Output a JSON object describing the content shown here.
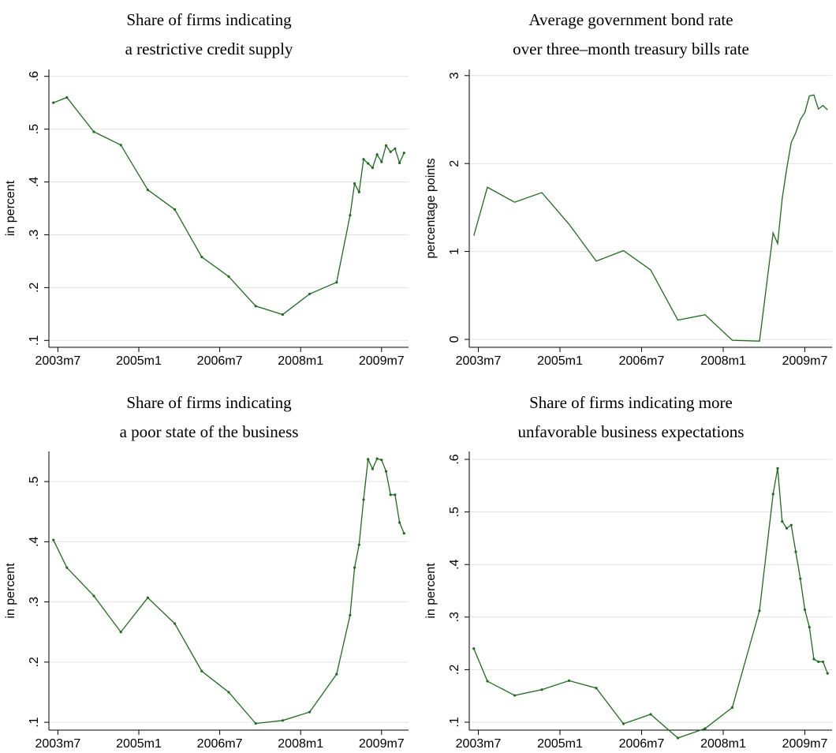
{
  "chart_data": [
    {
      "type": "line",
      "title": [
        "Share of firms indicating",
        "a restrictive credit supply"
      ],
      "ylabel": "in percent",
      "color": "#1e6b1e",
      "markers": true,
      "grid": true,
      "x": [
        "2003m6",
        "2003m9",
        "2004m3",
        "2004m9",
        "2005m3",
        "2005m9",
        "2006m3",
        "2006m9",
        "2007m3",
        "2007m9",
        "2008m3",
        "2008m9",
        "2008m12",
        "2009m1",
        "2009m2",
        "2009m3",
        "2009m4",
        "2009m5",
        "2009m6",
        "2009m7",
        "2009m8",
        "2009m9",
        "2009m10",
        "2009m11",
        "2009m12"
      ],
      "values": [
        0.55,
        0.56,
        0.495,
        0.47,
        0.385,
        0.348,
        0.258,
        0.221,
        0.165,
        0.149,
        0.188,
        0.21,
        0.337,
        0.397,
        0.381,
        0.443,
        0.435,
        0.427,
        0.452,
        0.438,
        0.469,
        0.457,
        0.463,
        0.436,
        0.455
      ],
      "xlim": [
        "2003m5",
        "2010m1"
      ],
      "xticks": [
        "2003m7",
        "2005m1",
        "2006m7",
        "2008m1",
        "2009m7"
      ],
      "ylim": [
        0.087,
        0.613
      ],
      "yticks": [
        {
          "value": 0.1,
          "label": ".1"
        },
        {
          "value": 0.2,
          "label": ".2"
        },
        {
          "value": 0.3,
          "label": ".3"
        },
        {
          "value": 0.4,
          "label": ".4"
        },
        {
          "value": 0.5,
          "label": ".5"
        },
        {
          "value": 0.6,
          "label": ".6"
        }
      ]
    },
    {
      "type": "line",
      "title": [
        "Average government bond rate",
        "over three–month treasury bills rate"
      ],
      "ylabel": "percentage points",
      "color": "#1e6b1e",
      "markers": false,
      "grid": true,
      "x": [
        "2003m6",
        "2003m9",
        "2004m3",
        "2004m9",
        "2005m3",
        "2005m9",
        "2006m3",
        "2006m9",
        "2007m3",
        "2007m9",
        "2008m3",
        "2008m9",
        "2008m12",
        "2009m1",
        "2009m2",
        "2009m3",
        "2009m4",
        "2009m5",
        "2009m6",
        "2009m7",
        "2009m8",
        "2009m9",
        "2009m10",
        "2009m11",
        "2009m12"
      ],
      "values": [
        1.18,
        1.73,
        1.56,
        1.67,
        1.31,
        0.89,
        1.01,
        0.79,
        0.22,
        0.28,
        -0.01,
        -0.02,
        1.21,
        1.09,
        1.6,
        1.94,
        2.24,
        2.35,
        2.5,
        2.58,
        2.77,
        2.78,
        2.62,
        2.66,
        2.61
      ],
      "xlim": [
        "2003m5",
        "2010m1"
      ],
      "xticks": [
        "2003m7",
        "2005m1",
        "2006m7",
        "2008m1",
        "2009m7"
      ],
      "ylim": [
        -0.09,
        3.07
      ],
      "yticks": [
        0,
        1,
        2,
        3
      ]
    },
    {
      "type": "line",
      "title": [
        "Share of firms indicating",
        "a poor state of the business"
      ],
      "ylabel": "in percent",
      "color": "#1e6b1e",
      "markers": true,
      "grid": true,
      "x": [
        "2003m6",
        "2003m9",
        "2004m3",
        "2004m9",
        "2005m3",
        "2005m9",
        "2006m3",
        "2006m9",
        "2007m3",
        "2007m9",
        "2008m3",
        "2008m9",
        "2008m12",
        "2009m1",
        "2009m2",
        "2009m3",
        "2009m4",
        "2009m5",
        "2009m6",
        "2009m7",
        "2009m8",
        "2009m9",
        "2009m10",
        "2009m11",
        "2009m12"
      ],
      "values": [
        0.403,
        0.357,
        0.31,
        0.25,
        0.307,
        0.264,
        0.185,
        0.15,
        0.098,
        0.103,
        0.117,
        0.18,
        0.278,
        0.357,
        0.395,
        0.47,
        0.537,
        0.521,
        0.538,
        0.536,
        0.517,
        0.478,
        0.478,
        0.432,
        0.414
      ],
      "xlim": [
        "2003m5",
        "2010m1"
      ],
      "xticks": [
        "2003m7",
        "2005m1",
        "2006m7",
        "2008m1",
        "2009m7"
      ],
      "ylim": [
        0.087,
        0.55
      ],
      "yticks": [
        {
          "value": 0.1,
          "label": ".1"
        },
        {
          "value": 0.2,
          "label": ".2"
        },
        {
          "value": 0.3,
          "label": ".3"
        },
        {
          "value": 0.4,
          "label": ".4"
        },
        {
          "value": 0.5,
          "label": ".5"
        }
      ]
    },
    {
      "type": "line",
      "title": [
        "Share of firms indicating more",
        "unfavorable business expectations"
      ],
      "ylabel": "in percent",
      "color": "#1e6b1e",
      "markers": true,
      "grid": true,
      "x": [
        "2003m6",
        "2003m9",
        "2004m3",
        "2004m9",
        "2005m3",
        "2005m9",
        "2006m3",
        "2006m9",
        "2007m3",
        "2007m9",
        "2008m3",
        "2008m9",
        "2008m12",
        "2009m1",
        "2009m2",
        "2009m3",
        "2009m4",
        "2009m5",
        "2009m6",
        "2009m7",
        "2009m8",
        "2009m9",
        "2009m10",
        "2009m11",
        "2009m12"
      ],
      "values": [
        0.24,
        0.178,
        0.151,
        0.162,
        0.179,
        0.165,
        0.097,
        0.115,
        0.07,
        0.088,
        0.128,
        0.312,
        0.534,
        0.583,
        0.482,
        0.469,
        0.475,
        0.424,
        0.373,
        0.314,
        0.281,
        0.22,
        0.215,
        0.215,
        0.193
      ],
      "xlim": [
        "2003m5",
        "2010m1"
      ],
      "xticks": [
        "2003m7",
        "2005m1",
        "2006m7",
        "2008m1",
        "2009m7"
      ],
      "ylim": [
        0.085,
        0.615
      ],
      "yticks": [
        {
          "value": 0.1,
          "label": ".1"
        },
        {
          "value": 0.2,
          "label": ".2"
        },
        {
          "value": 0.3,
          "label": ".3"
        },
        {
          "value": 0.4,
          "label": ".4"
        },
        {
          "value": 0.5,
          "label": ".5"
        },
        {
          "value": 0.6,
          "label": ".6"
        }
      ]
    }
  ]
}
